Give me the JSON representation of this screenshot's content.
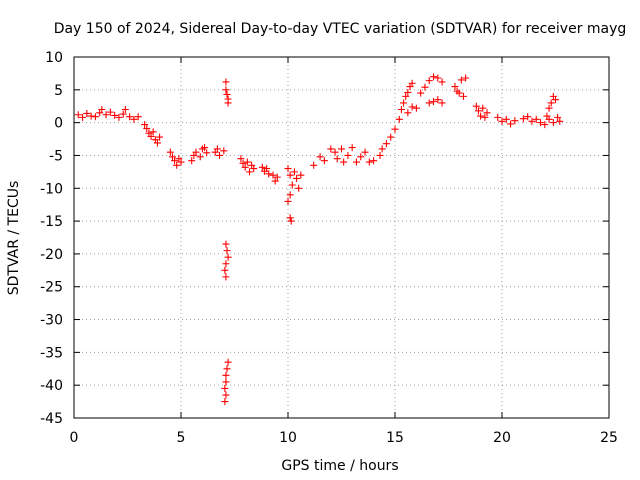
{
  "chart_data": {
    "type": "scatter",
    "title": "Day 150 of 2024, Sidereal Day-to-day VTEC variation (SDTVAR) for receiver mayg",
    "xlabel": "GPS time / hours",
    "ylabel": "SDTVAR / TECUs",
    "xlim": [
      0,
      25
    ],
    "ylim": [
      -45,
      10
    ],
    "xticks": [
      0,
      5,
      10,
      15,
      20,
      25
    ],
    "yticks": [
      10,
      5,
      0,
      -5,
      -10,
      -15,
      -20,
      -25,
      -30,
      -35,
      -40,
      -45
    ],
    "grid": true,
    "marker": "plus",
    "color": "#ff0000",
    "series": [
      {
        "name": "SDTVAR",
        "points": [
          [
            0.2,
            1.2
          ],
          [
            0.4,
            0.8
          ],
          [
            0.6,
            1.4
          ],
          [
            0.8,
            1.0
          ],
          [
            1.0,
            0.9
          ],
          [
            1.2,
            1.5
          ],
          [
            1.3,
            2.0
          ],
          [
            1.5,
            1.2
          ],
          [
            1.7,
            1.6
          ],
          [
            1.9,
            1.1
          ],
          [
            2.1,
            0.8
          ],
          [
            2.3,
            1.3
          ],
          [
            2.4,
            2.0
          ],
          [
            2.6,
            0.9
          ],
          [
            2.8,
            0.5
          ],
          [
            3.0,
            0.9
          ],
          [
            3.3,
            -0.3
          ],
          [
            3.4,
            -0.9
          ],
          [
            3.5,
            -1.6
          ],
          [
            3.6,
            -2.1
          ],
          [
            3.7,
            -1.4
          ],
          [
            3.8,
            -2.6
          ],
          [
            3.9,
            -3.1
          ],
          [
            4.0,
            -2.2
          ],
          [
            4.5,
            -4.5
          ],
          [
            4.6,
            -5.2
          ],
          [
            4.7,
            -5.8
          ],
          [
            4.8,
            -6.5
          ],
          [
            4.9,
            -5.5
          ],
          [
            5.0,
            -6.0
          ],
          [
            5.5,
            -5.8
          ],
          [
            5.6,
            -5.0
          ],
          [
            5.7,
            -4.5
          ],
          [
            5.9,
            -5.2
          ],
          [
            6.0,
            -4.0
          ],
          [
            6.1,
            -3.8
          ],
          [
            6.2,
            -4.6
          ],
          [
            6.6,
            -4.5
          ],
          [
            6.7,
            -4.0
          ],
          [
            6.8,
            -5.0
          ],
          [
            7.0,
            -4.3
          ],
          [
            7.1,
            6.2
          ],
          [
            7.1,
            5.0
          ],
          [
            7.15,
            4.3
          ],
          [
            7.2,
            3.6
          ],
          [
            7.2,
            3.0
          ],
          [
            7.1,
            -18.5
          ],
          [
            7.15,
            -19.5
          ],
          [
            7.2,
            -20.5
          ],
          [
            7.1,
            -21.5
          ],
          [
            7.05,
            -22.5
          ],
          [
            7.1,
            -23.5
          ],
          [
            7.2,
            -36.5
          ],
          [
            7.15,
            -37.5
          ],
          [
            7.1,
            -38.5
          ],
          [
            7.1,
            -39.5
          ],
          [
            7.05,
            -40.5
          ],
          [
            7.1,
            -41.5
          ],
          [
            7.05,
            -42.5
          ],
          [
            7.8,
            -5.5
          ],
          [
            7.9,
            -6.2
          ],
          [
            8.0,
            -6.8
          ],
          [
            8.1,
            -6.0
          ],
          [
            8.2,
            -7.5
          ],
          [
            8.3,
            -6.5
          ],
          [
            8.4,
            -7.0
          ],
          [
            8.8,
            -6.8
          ],
          [
            8.9,
            -7.4
          ],
          [
            9.0,
            -7.0
          ],
          [
            9.1,
            -7.8
          ],
          [
            9.3,
            -8.0
          ],
          [
            9.4,
            -8.9
          ],
          [
            9.5,
            -8.3
          ],
          [
            10.0,
            -7.0
          ],
          [
            10.1,
            -8.0
          ],
          [
            10.2,
            -9.5
          ],
          [
            10.3,
            -7.5
          ],
          [
            10.4,
            -8.5
          ],
          [
            10.5,
            -10.0
          ],
          [
            10.6,
            -8.0
          ],
          [
            10.1,
            -11.0
          ],
          [
            10.0,
            -12.0
          ],
          [
            10.1,
            -14.5
          ],
          [
            10.15,
            -15.0
          ],
          [
            11.2,
            -6.5
          ],
          [
            11.5,
            -5.2
          ],
          [
            11.7,
            -5.8
          ],
          [
            12.0,
            -4.0
          ],
          [
            12.2,
            -4.5
          ],
          [
            12.3,
            -5.5
          ],
          [
            12.5,
            -4.0
          ],
          [
            12.6,
            -6.0
          ],
          [
            12.8,
            -5.0
          ],
          [
            13.0,
            -3.8
          ],
          [
            13.2,
            -6.0
          ],
          [
            13.4,
            -5.2
          ],
          [
            13.6,
            -4.5
          ],
          [
            13.8,
            -6.0
          ],
          [
            14.0,
            -5.8
          ],
          [
            14.3,
            -5.0
          ],
          [
            14.4,
            -4.0
          ],
          [
            14.6,
            -3.2
          ],
          [
            14.8,
            -2.2
          ],
          [
            15.0,
            -1.0
          ],
          [
            15.2,
            0.5
          ],
          [
            15.3,
            2.0
          ],
          [
            15.4,
            3.0
          ],
          [
            15.5,
            4.0
          ],
          [
            15.6,
            4.6
          ],
          [
            15.7,
            5.5
          ],
          [
            15.8,
            6.0
          ],
          [
            15.6,
            1.5
          ],
          [
            15.8,
            2.4
          ],
          [
            16.0,
            2.2
          ],
          [
            16.2,
            4.5
          ],
          [
            16.4,
            5.4
          ],
          [
            16.6,
            6.4
          ],
          [
            16.8,
            7.0
          ],
          [
            17.0,
            6.8
          ],
          [
            17.2,
            6.2
          ],
          [
            16.6,
            3.0
          ],
          [
            16.8,
            3.2
          ],
          [
            17.0,
            3.5
          ],
          [
            17.2,
            3.0
          ],
          [
            17.8,
            5.5
          ],
          [
            17.9,
            4.8
          ],
          [
            18.0,
            4.5
          ],
          [
            18.2,
            4.0
          ],
          [
            18.1,
            6.5
          ],
          [
            18.3,
            6.8
          ],
          [
            18.8,
            2.5
          ],
          [
            18.9,
            1.8
          ],
          [
            19.0,
            1.0
          ],
          [
            19.1,
            2.2
          ],
          [
            19.2,
            0.8
          ],
          [
            19.3,
            1.5
          ],
          [
            19.8,
            0.8
          ],
          [
            20.0,
            0.2
          ],
          [
            20.2,
            0.5
          ],
          [
            20.4,
            -0.2
          ],
          [
            20.6,
            0.3
          ],
          [
            21.0,
            0.6
          ],
          [
            21.2,
            0.9
          ],
          [
            21.4,
            0.2
          ],
          [
            21.6,
            0.5
          ],
          [
            21.8,
            0.0
          ],
          [
            22.0,
            -0.3
          ],
          [
            22.1,
            1.0
          ],
          [
            22.2,
            2.2
          ],
          [
            22.3,
            3.0
          ],
          [
            22.4,
            4.0
          ],
          [
            22.5,
            3.5
          ],
          [
            22.2,
            0.5
          ],
          [
            22.4,
            0.0
          ],
          [
            22.6,
            0.8
          ],
          [
            22.7,
            0.2
          ]
        ]
      }
    ]
  }
}
